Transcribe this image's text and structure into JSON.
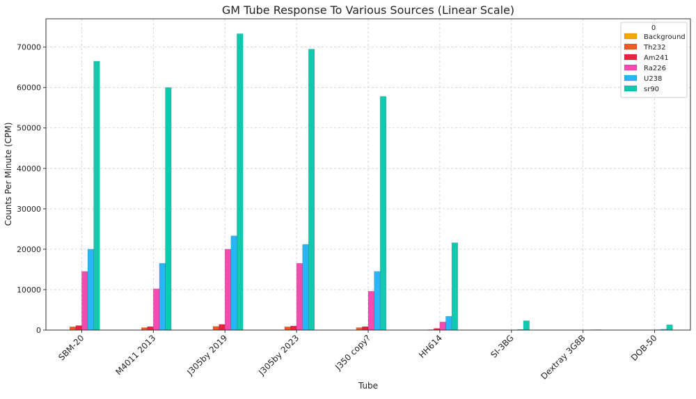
{
  "chart_data": {
    "type": "bar",
    "title": "GM Tube Response To Various Sources (Linear Scale)",
    "xlabel": "Tube",
    "ylabel": "Counts Per Minute (CPM)",
    "ylim": [
      0,
      77000
    ],
    "yticks": [
      0,
      10000,
      20000,
      30000,
      40000,
      50000,
      60000,
      70000
    ],
    "grid": true,
    "legend_title": "0",
    "legend_position": "top-right",
    "categories": [
      "SBM-20",
      "M4011 2013",
      "J305by 2019",
      "J305by 2023",
      "J350 copy?",
      "HH614",
      "SI-3BG",
      "Dextray 3G8B",
      "DOB-50"
    ],
    "series": [
      {
        "name": "Background",
        "color": "#f5a70a",
        "values": [
          30,
          25,
          30,
          30,
          25,
          15,
          5,
          5,
          5
        ]
      },
      {
        "name": "Th232",
        "color": "#ee5a24",
        "values": [
          800,
          600,
          900,
          800,
          600,
          100,
          20,
          10,
          20
        ]
      },
      {
        "name": "Am241",
        "color": "#e8213f",
        "values": [
          1100,
          850,
          1400,
          1000,
          850,
          400,
          20,
          10,
          20
        ]
      },
      {
        "name": "Ra226",
        "color": "#f34bb0",
        "values": [
          14500,
          10200,
          20000,
          16500,
          9600,
          2000,
          60,
          30,
          100
        ]
      },
      {
        "name": "U238",
        "color": "#29b6f6",
        "values": [
          20000,
          16500,
          23300,
          21200,
          14500,
          3400,
          150,
          80,
          200
        ]
      },
      {
        "name": "sr90",
        "color": "#12c9b0",
        "values": [
          66500,
          60000,
          73300,
          69500,
          57800,
          21600,
          2300,
          100,
          1300
        ]
      }
    ]
  }
}
